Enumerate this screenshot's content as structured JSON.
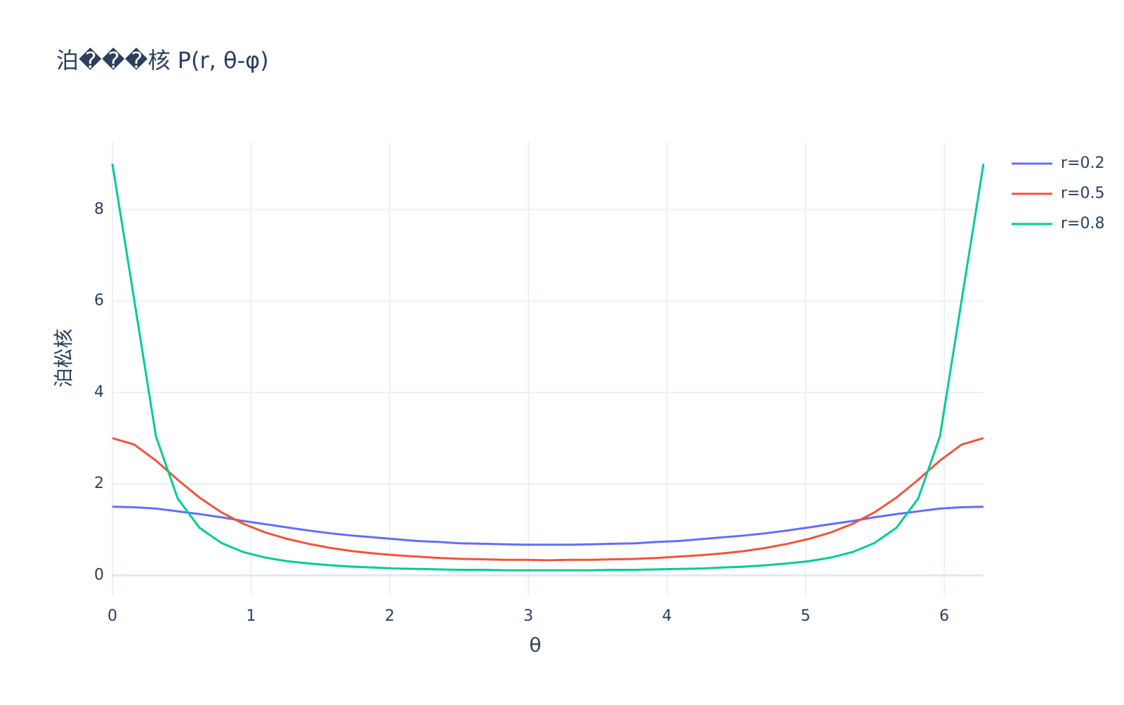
{
  "chart_data": {
    "type": "line",
    "title": "泊���核 P(r, θ-φ)",
    "x_label": "θ",
    "y_label": "泊松核",
    "x": [
      0,
      0.157,
      0.314,
      0.471,
      0.628,
      0.785,
      0.942,
      1.1,
      1.257,
      1.414,
      1.571,
      1.728,
      1.885,
      2.042,
      2.199,
      2.356,
      2.513,
      2.67,
      2.827,
      2.985,
      3.142,
      3.299,
      3.456,
      3.613,
      3.77,
      3.927,
      4.084,
      4.241,
      4.398,
      4.555,
      4.712,
      4.869,
      5.027,
      5.184,
      5.341,
      5.498,
      5.655,
      5.812,
      5.969,
      6.126,
      6.283
    ],
    "series": [
      {
        "name": "r=0.2",
        "color": "#636efa",
        "values": [
          1.5,
          1.49,
          1.46,
          1.4,
          1.34,
          1.27,
          1.19,
          1.12,
          1.05,
          0.98,
          0.92,
          0.87,
          0.83,
          0.79,
          0.75,
          0.73,
          0.7,
          0.69,
          0.68,
          0.67,
          0.67,
          0.67,
          0.68,
          0.69,
          0.7,
          0.73,
          0.75,
          0.79,
          0.83,
          0.87,
          0.92,
          0.98,
          1.05,
          1.12,
          1.19,
          1.27,
          1.34,
          1.4,
          1.46,
          1.49,
          1.5
        ]
      },
      {
        "name": "r=0.5",
        "color": "#ef553b",
        "values": [
          3,
          2.86,
          2.51,
          2.09,
          1.7,
          1.38,
          1.13,
          0.94,
          0.8,
          0.69,
          0.6,
          0.53,
          0.48,
          0.44,
          0.41,
          0.38,
          0.36,
          0.35,
          0.34,
          0.34,
          0.33,
          0.34,
          0.34,
          0.35,
          0.36,
          0.38,
          0.41,
          0.44,
          0.48,
          0.53,
          0.6,
          0.69,
          0.8,
          0.94,
          1.13,
          1.38,
          1.7,
          2.09,
          2.51,
          2.86,
          3
        ]
      },
      {
        "name": "r=0.8",
        "color": "#00cc96",
        "values": [
          9,
          6.03,
          3.04,
          1.68,
          1.04,
          0.71,
          0.51,
          0.39,
          0.31,
          0.26,
          0.22,
          0.19,
          0.17,
          0.15,
          0.14,
          0.13,
          0.12,
          0.12,
          0.11,
          0.11,
          0.11,
          0.11,
          0.11,
          0.12,
          0.12,
          0.13,
          0.14,
          0.15,
          0.17,
          0.19,
          0.22,
          0.26,
          0.31,
          0.39,
          0.51,
          0.71,
          1.04,
          1.68,
          3.04,
          6.03,
          9
        ]
      }
    ],
    "xlim": [
      0,
      6.283
    ],
    "xticks": [
      0,
      1,
      2,
      3,
      4,
      5,
      6
    ],
    "ylim": [
      -0.44,
      9.48
    ],
    "yticks": [
      0,
      2,
      4,
      6,
      8
    ],
    "grid": true,
    "legend": "right"
  }
}
